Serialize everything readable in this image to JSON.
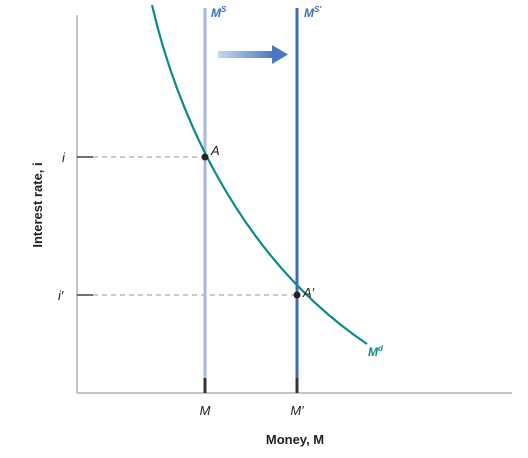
{
  "chart_data": {
    "type": "line",
    "title": "",
    "xlabel": "Money, M",
    "ylabel": "Interest rate, i",
    "x_ticks": [
      "M",
      "M′"
    ],
    "y_ticks": [
      "i",
      "i′"
    ],
    "grid": false,
    "series": [
      {
        "name": "Md",
        "label_main": "M",
        "label_sup": "d",
        "color": "#0a8a8a",
        "kind": "demand-curve"
      },
      {
        "name": "Ms",
        "label_main": "M",
        "label_sup": "S",
        "color": "#a6b8e0",
        "kind": "vertical-supply",
        "x": "M"
      },
      {
        "name": "Ms′",
        "label_main": "M",
        "label_sup": "S′",
        "color": "#3f6db5",
        "kind": "vertical-supply",
        "x": "M′"
      }
    ],
    "points": [
      {
        "label": "A",
        "x": "M",
        "y": "i"
      },
      {
        "label": "A′",
        "x": "M′",
        "y": "i′"
      }
    ],
    "annotation": {
      "type": "arrow",
      "direction": "right",
      "color": "#4a78c0",
      "meaning": "shift of money supply from MS to MS′"
    }
  }
}
